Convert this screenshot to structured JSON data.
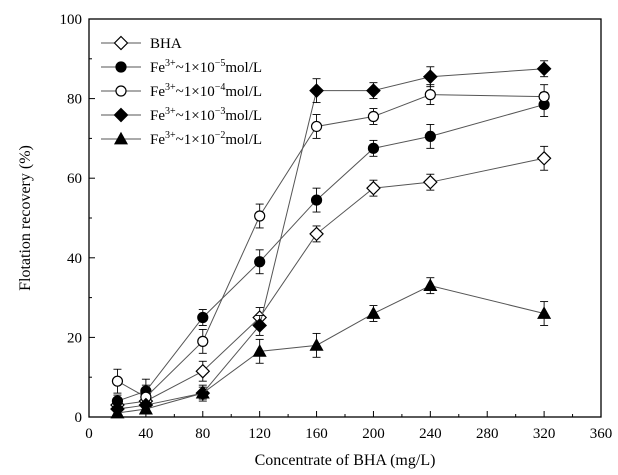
{
  "chart_data": {
    "type": "line",
    "title": "",
    "xlabel": "Concentrate of BHA (mg/L)",
    "ylabel": "Flotation recovery (%)",
    "xlim": [
      0,
      360
    ],
    "ylim": [
      0,
      100
    ],
    "xticks": [
      0,
      40,
      80,
      120,
      160,
      200,
      240,
      280,
      320,
      360
    ],
    "yticks": [
      0,
      20,
      40,
      60,
      80,
      100
    ],
    "grid": false,
    "legend": "top-left",
    "series": [
      {
        "name": "BHA",
        "marker": "diamond-open",
        "x": [
          20,
          40,
          80,
          120,
          160,
          200,
          240,
          320
        ],
        "y": [
          3,
          4,
          11.5,
          25,
          46,
          57.5,
          59,
          65
        ],
        "err": [
          1.5,
          1.5,
          2.5,
          2.5,
          2,
          2,
          2,
          3
        ]
      },
      {
        "name": "Fe³⁺~1×10⁻⁵mol/L",
        "name_base": "Fe",
        "name_sup1": "3+",
        "name_mid": "~1×10",
        "name_sup2": "−5",
        "name_tail": "mol/L",
        "marker": "circle-filled",
        "x": [
          20,
          40,
          80,
          120,
          160,
          200,
          240,
          320
        ],
        "y": [
          4,
          6.5,
          25,
          39,
          54.5,
          67.5,
          70.5,
          78.5
        ],
        "err": [
          1.5,
          3,
          2,
          3,
          3,
          2,
          3,
          3
        ]
      },
      {
        "name": "Fe³⁺~1×10⁻⁴mol/L",
        "name_base": "Fe",
        "name_sup1": "3+",
        "name_mid": "~1×10",
        "name_sup2": "−4",
        "name_tail": "mol/L",
        "marker": "circle-open",
        "x": [
          20,
          40,
          80,
          120,
          160,
          200,
          240,
          320
        ],
        "y": [
          9,
          5,
          19,
          50.5,
          73,
          75.5,
          81,
          80.5
        ],
        "err": [
          3,
          3,
          3,
          3,
          3,
          2,
          2.5,
          3
        ]
      },
      {
        "name": "Fe³⁺~1×10⁻³mol/L",
        "name_base": "Fe",
        "name_sup1": "3+",
        "name_mid": "~1×10",
        "name_sup2": "−3",
        "name_tail": "mol/L",
        "marker": "diamond-filled",
        "x": [
          20,
          40,
          80,
          120,
          160,
          200,
          240,
          320
        ],
        "y": [
          2,
          3,
          6,
          23,
          82,
          82,
          85.5,
          87.5
        ],
        "err": [
          1,
          1,
          1.5,
          2.5,
          3,
          2,
          2.5,
          2
        ]
      },
      {
        "name": "Fe³⁺~1×10⁻²mol/L",
        "name_base": "Fe",
        "name_sup1": "3+",
        "name_mid": "~1×10",
        "name_sup2": "−2",
        "name_tail": "mol/L",
        "marker": "triangle-filled",
        "x": [
          20,
          40,
          80,
          120,
          160,
          200,
          240,
          320
        ],
        "y": [
          1,
          2,
          6,
          16.5,
          18,
          26,
          33,
          26
        ],
        "err": [
          1,
          1,
          2,
          3,
          3,
          2,
          2,
          3
        ]
      }
    ]
  }
}
